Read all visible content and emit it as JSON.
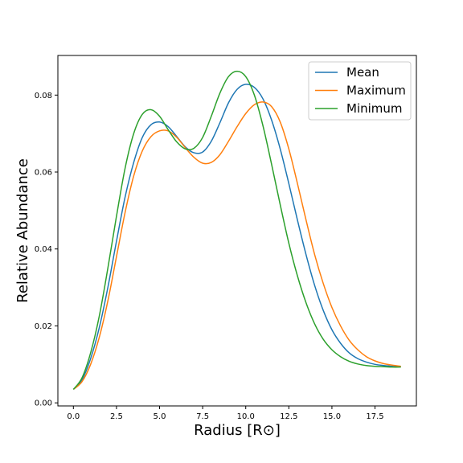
{
  "chart_data": {
    "type": "line",
    "title": "",
    "xlabel": "Radius [R⊙]",
    "ylabel": "Relative Abundance",
    "xlim": [
      -0.9,
      19.9
    ],
    "ylim": [
      -0.0008,
      0.0903
    ],
    "xticks": [
      0.0,
      2.5,
      5.0,
      7.5,
      10.0,
      12.5,
      15.0,
      17.5
    ],
    "xtick_labels": [
      "0.0",
      "2.5",
      "5.0",
      "7.5",
      "10.0",
      "12.5",
      "15.0",
      "17.5"
    ],
    "yticks": [
      0.0,
      0.02,
      0.04,
      0.06,
      0.08
    ],
    "ytick_labels": [
      "0.00",
      "0.02",
      "0.04",
      "0.06",
      "0.08"
    ],
    "grid": false,
    "legend_position": "top-right",
    "x": [
      0,
      0.5,
      1,
      1.5,
      2,
      2.5,
      3,
      3.5,
      4,
      4.5,
      5,
      5.5,
      6,
      6.5,
      7,
      7.5,
      8,
      8.5,
      9,
      9.5,
      10,
      10.5,
      11,
      11.5,
      12,
      12.5,
      13,
      13.5,
      14,
      14.5,
      15,
      15.5,
      16,
      16.5,
      17,
      17.5,
      18,
      18.5,
      19
    ],
    "series": [
      {
        "name": "Mean",
        "color": "#1f77b4",
        "values": [
          0.0035,
          0.006,
          0.0115,
          0.0195,
          0.03,
          0.042,
          0.0535,
          0.0625,
          0.069,
          0.0723,
          0.073,
          0.0718,
          0.0692,
          0.0665,
          0.065,
          0.0652,
          0.068,
          0.0728,
          0.078,
          0.0815,
          0.0828,
          0.082,
          0.079,
          0.0735,
          0.066,
          0.057,
          0.0475,
          0.0385,
          0.0305,
          0.024,
          0.019,
          0.0155,
          0.013,
          0.0115,
          0.0106,
          0.01,
          0.0097,
          0.0095,
          0.0094
        ]
      },
      {
        "name": "Maximum",
        "color": "#ff7f0e",
        "values": [
          0.0035,
          0.0055,
          0.01,
          0.017,
          0.0265,
          0.038,
          0.0495,
          0.059,
          0.0655,
          0.0692,
          0.0707,
          0.0707,
          0.069,
          0.0663,
          0.0638,
          0.0623,
          0.0625,
          0.0645,
          0.068,
          0.0718,
          0.0752,
          0.0775,
          0.0782,
          0.077,
          0.073,
          0.066,
          0.057,
          0.0475,
          0.0385,
          0.031,
          0.0248,
          0.02,
          0.0163,
          0.0138,
          0.012,
          0.0109,
          0.0102,
          0.0098,
          0.0095
        ]
      },
      {
        "name": "Minimum",
        "color": "#2ca02c",
        "values": [
          0.0035,
          0.0065,
          0.013,
          0.0225,
          0.035,
          0.0485,
          0.061,
          0.07,
          0.075,
          0.0762,
          0.0745,
          0.071,
          0.0678,
          0.066,
          0.0662,
          0.069,
          0.0745,
          0.0805,
          0.0848,
          0.0862,
          0.0848,
          0.08,
          0.072,
          0.062,
          0.0515,
          0.0415,
          0.033,
          0.026,
          0.0205,
          0.0165,
          0.0138,
          0.012,
          0.0108,
          0.0101,
          0.0097,
          0.0095,
          0.0094,
          0.0093,
          0.0093
        ]
      }
    ]
  }
}
